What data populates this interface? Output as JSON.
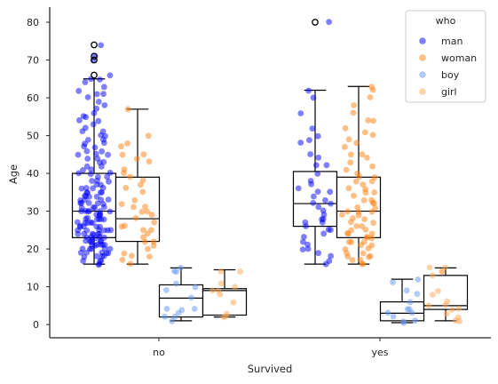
{
  "chart_data": {
    "type": "box+strip",
    "xlabel": "Survived",
    "ylabel": "Age",
    "categories": [
      "no",
      "yes"
    ],
    "yticks": [
      0,
      10,
      20,
      30,
      40,
      50,
      60,
      70,
      80
    ],
    "ylim": [
      -3.5,
      84
    ],
    "legend": {
      "title": "who",
      "placement": "top-right",
      "entries": [
        {
          "name": "man",
          "color": "#0000ff"
        },
        {
          "name": "woman",
          "color": "#ff7f0e"
        },
        {
          "name": "boy",
          "color": "#6495ed"
        },
        {
          "name": "girl",
          "color": "#ffa54f"
        }
      ]
    },
    "boxes": [
      {
        "category": "no",
        "group": "man",
        "q1": 23,
        "median": 30,
        "q3": 40,
        "whisker_low": 16,
        "whisker_high": 65,
        "fliers": [
          66,
          70,
          71,
          74
        ]
      },
      {
        "category": "no",
        "group": "woman",
        "q1": 22,
        "median": 28,
        "q3": 39,
        "whisker_low": 16,
        "whisker_high": 57,
        "fliers": []
      },
      {
        "category": "no",
        "group": "boy",
        "q1": 2,
        "median": 7,
        "q3": 10.5,
        "whisker_low": 1,
        "whisker_high": 15,
        "fliers": []
      },
      {
        "category": "no",
        "group": "girl",
        "q1": 2.5,
        "median": 9,
        "q3": 9.5,
        "whisker_low": 2,
        "whisker_high": 14.5,
        "fliers": []
      },
      {
        "category": "yes",
        "group": "man",
        "q1": 26,
        "median": 32,
        "q3": 40.5,
        "whisker_low": 16,
        "whisker_high": 62,
        "fliers": [
          80
        ]
      },
      {
        "category": "yes",
        "group": "woman",
        "q1": 23,
        "median": 30,
        "q3": 39,
        "whisker_low": 16,
        "whisker_high": 63,
        "fliers": []
      },
      {
        "category": "yes",
        "group": "boy",
        "q1": 1,
        "median": 3,
        "q3": 6,
        "whisker_low": 0.5,
        "whisker_high": 12,
        "fliers": []
      },
      {
        "category": "yes",
        "group": "girl",
        "q1": 4,
        "median": 5,
        "q3": 13,
        "whisker_low": 1,
        "whisker_high": 15,
        "fliers": []
      }
    ],
    "points": [
      {
        "category": "no",
        "group": "man",
        "values": [
          16,
          16,
          17,
          17,
          17,
          18,
          18,
          18,
          18,
          19,
          19,
          19,
          19,
          19,
          20,
          20,
          20,
          20,
          20,
          21,
          21,
          21,
          21,
          21,
          21,
          22,
          22,
          22,
          22,
          22,
          22,
          23,
          23,
          23,
          23,
          23,
          24,
          24,
          24,
          24,
          24,
          24,
          25,
          25,
          25,
          25,
          25,
          25,
          26,
          26,
          26,
          26,
          26,
          27,
          27,
          27,
          27,
          27,
          28,
          28,
          28,
          28,
          28,
          28,
          29,
          29,
          29,
          29,
          30,
          30,
          30,
          30,
          30,
          30,
          31,
          31,
          31,
          31,
          32,
          32,
          32,
          32,
          32,
          33,
          33,
          33,
          33,
          34,
          34,
          34,
          34,
          35,
          35,
          35,
          35,
          36,
          36,
          36,
          36,
          37,
          37,
          38,
          38,
          38,
          39,
          39,
          40,
          40,
          40,
          41,
          41,
          42,
          42,
          43,
          43,
          44,
          44,
          45,
          45,
          45,
          46,
          46,
          47,
          47,
          48,
          48,
          49,
          49,
          50,
          50,
          51,
          51,
          52,
          53,
          54,
          54,
          55,
          55,
          56,
          57,
          58,
          59,
          60,
          61,
          61,
          62,
          63,
          64,
          65,
          65,
          66,
          70,
          71,
          74
        ]
      },
      {
        "category": "no",
        "group": "woman",
        "values": [
          16,
          17,
          18,
          18,
          19,
          20,
          21,
          22,
          22,
          23,
          24,
          25,
          25,
          26,
          26,
          27,
          28,
          29,
          30,
          30,
          31,
          31,
          32,
          33,
          35,
          36,
          37,
          38,
          39,
          40,
          41,
          43,
          44,
          45,
          45,
          47,
          48,
          50,
          57
        ]
      },
      {
        "category": "no",
        "group": "boy",
        "values": [
          1,
          2,
          2,
          3,
          4,
          4,
          4,
          7,
          9,
          10,
          11,
          14,
          14,
          15
        ]
      },
      {
        "category": "no",
        "group": "girl",
        "values": [
          2,
          2,
          3,
          6,
          8,
          9,
          9,
          10,
          11,
          14,
          14
        ]
      },
      {
        "category": "yes",
        "group": "man",
        "values": [
          16,
          17,
          18,
          19,
          20,
          20,
          21,
          22,
          23,
          24,
          25,
          25,
          26,
          27,
          27,
          28,
          28,
          29,
          30,
          31,
          32,
          32,
          33,
          34,
          35,
          35,
          36,
          37,
          38,
          40,
          42,
          42,
          44,
          45,
          48,
          49,
          50,
          52,
          56,
          60,
          62,
          80
        ]
      },
      {
        "category": "yes",
        "group": "woman",
        "values": [
          16,
          16,
          17,
          17,
          18,
          18,
          18,
          19,
          19,
          20,
          20,
          21,
          21,
          22,
          22,
          22,
          23,
          23,
          23,
          24,
          24,
          24,
          25,
          25,
          26,
          26,
          27,
          27,
          28,
          28,
          29,
          29,
          30,
          30,
          30,
          31,
          31,
          32,
          32,
          33,
          33,
          34,
          35,
          35,
          36,
          36,
          37,
          38,
          38,
          39,
          39,
          40,
          41,
          42,
          43,
          44,
          45,
          45,
          47,
          48,
          49,
          50,
          51,
          52,
          54,
          54,
          56,
          58,
          60,
          62,
          63
        ]
      },
      {
        "category": "yes",
        "group": "boy",
        "values": [
          0.5,
          1,
          1,
          2,
          3,
          3,
          4,
          4,
          6,
          8,
          9,
          11,
          12
        ]
      },
      {
        "category": "yes",
        "group": "girl",
        "values": [
          1,
          1,
          2,
          3,
          4,
          4,
          5,
          5,
          6,
          8,
          9,
          13,
          14,
          14,
          15,
          15
        ]
      }
    ]
  }
}
